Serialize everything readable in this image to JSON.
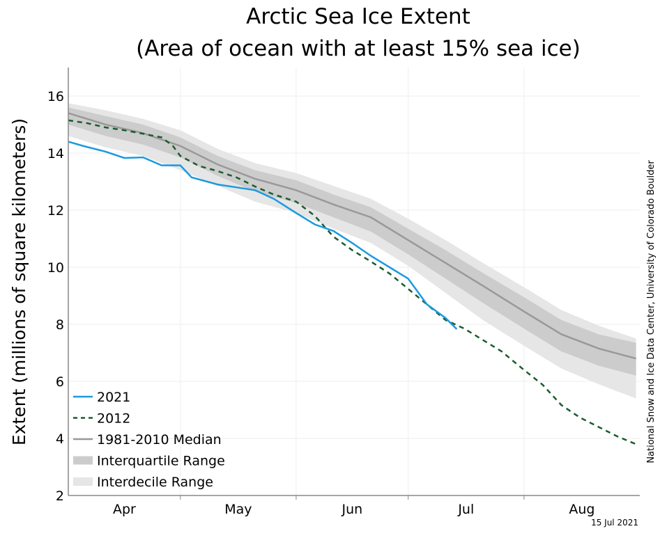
{
  "chart_data": {
    "type": "line",
    "title": "Arctic Sea Ice Extent",
    "subtitle": "(Area of ocean with at least 15% sea ice)",
    "ylabel": "Extent (millions of square kilometers)",
    "xlabel": "",
    "ylim": [
      2,
      17
    ],
    "yticks": [
      2,
      4,
      6,
      8,
      10,
      12,
      14,
      16
    ],
    "xlim": [
      "Apr 1",
      "Aug 31"
    ],
    "xtick_labels": [
      "Apr",
      "May",
      "Jun",
      "Jul",
      "Aug"
    ],
    "grid": true,
    "legend_position": "bottom-left",
    "credit": "National Snow and Ice Data Center, University of Colorado Boulder",
    "date_stamp": "15 Jul 2021",
    "climatology": {
      "dates": [
        "Apr 1",
        "Apr 11",
        "Apr 21",
        "May 1",
        "May 11",
        "May 21",
        "Jun 1",
        "Jun 11",
        "Jun 21",
        "Jul 1",
        "Jul 11",
        "Jul 21",
        "Aug 1",
        "Aug 11",
        "Aug 21",
        "Aug 31"
      ],
      "median": {
        "name": "1981-2010 Median",
        "color": "#999999",
        "values": [
          15.4,
          15.0,
          14.7,
          14.25,
          13.6,
          13.1,
          12.7,
          12.2,
          11.75,
          10.95,
          10.15,
          9.35,
          8.45,
          7.65,
          7.15,
          6.8
        ]
      },
      "interquartile": {
        "name": "Interquartile Range",
        "color": "#cccccc",
        "low": [
          15.0,
          14.6,
          14.3,
          13.85,
          13.2,
          12.65,
          12.25,
          11.75,
          11.25,
          10.45,
          9.6,
          8.75,
          7.85,
          7.05,
          6.55,
          6.2
        ],
        "high": [
          15.6,
          15.3,
          15.0,
          14.55,
          13.9,
          13.4,
          13.05,
          12.55,
          12.1,
          11.35,
          10.6,
          9.8,
          8.95,
          8.15,
          7.65,
          7.35
        ]
      },
      "interdecile": {
        "name": "Interdecile Range",
        "color": "#e6e6e6",
        "low": [
          14.6,
          14.2,
          13.9,
          13.4,
          12.85,
          12.3,
          11.9,
          11.35,
          10.85,
          10.05,
          9.1,
          8.15,
          7.25,
          6.45,
          5.9,
          5.4
        ],
        "high": [
          15.75,
          15.5,
          15.2,
          14.8,
          14.15,
          13.65,
          13.3,
          12.85,
          12.4,
          11.7,
          10.95,
          10.15,
          9.3,
          8.5,
          7.95,
          7.5
        ]
      }
    },
    "series": [
      {
        "name": "2021",
        "color": "#1a9ae0",
        "style": "solid",
        "dates": [
          "Apr 1",
          "Apr 5",
          "Apr 11",
          "Apr 16",
          "Apr 21",
          "Apr 26",
          "May 1",
          "May 4",
          "May 11",
          "May 16",
          "May 21",
          "May 26",
          "Jun 1",
          "Jun 6",
          "Jun 11",
          "Jun 16",
          "Jun 21",
          "Jun 26",
          "Jul 1",
          "Jul 6",
          "Jul 11",
          "Jul 14"
        ],
        "values": [
          14.4,
          14.25,
          14.05,
          13.83,
          13.85,
          13.57,
          13.57,
          13.15,
          12.9,
          12.8,
          12.7,
          12.4,
          11.9,
          11.5,
          11.27,
          10.85,
          10.4,
          10.0,
          9.6,
          8.7,
          8.22,
          7.83
        ]
      },
      {
        "name": "2012",
        "color": "#1a5c2e",
        "style": "dashed",
        "dates": [
          "Apr 1",
          "Apr 6",
          "Apr 11",
          "Apr 16",
          "Apr 21",
          "Apr 26",
          "Apr 29",
          "May 1",
          "May 6",
          "May 11",
          "May 16",
          "May 21",
          "May 26",
          "Jun 1",
          "Jun 6",
          "Jun 11",
          "Jun 16",
          "Jun 21",
          "Jun 26",
          "Jul 1",
          "Jul 6",
          "Jul 11",
          "Jul 16",
          "Jul 21",
          "Jul 26",
          "Aug 1",
          "Aug 6",
          "Aug 11",
          "Aug 16",
          "Aug 21",
          "Aug 26",
          "Aug 31"
        ],
        "values": [
          15.15,
          15.05,
          14.9,
          14.8,
          14.68,
          14.55,
          14.25,
          13.9,
          13.55,
          13.37,
          13.15,
          12.83,
          12.55,
          12.3,
          11.8,
          11.07,
          10.6,
          10.2,
          9.78,
          9.24,
          8.7,
          8.15,
          7.85,
          7.45,
          7.05,
          6.4,
          5.88,
          5.17,
          4.73,
          4.4,
          4.07,
          3.8
        ]
      },
      {
        "name": "1981-2010 Median",
        "color": "#999999",
        "style": "solid"
      },
      {
        "name": "Interquartile Range",
        "color": "#cccccc",
        "style": "band"
      },
      {
        "name": "Interdecile Range",
        "color": "#e6e6e6",
        "style": "band"
      }
    ]
  }
}
